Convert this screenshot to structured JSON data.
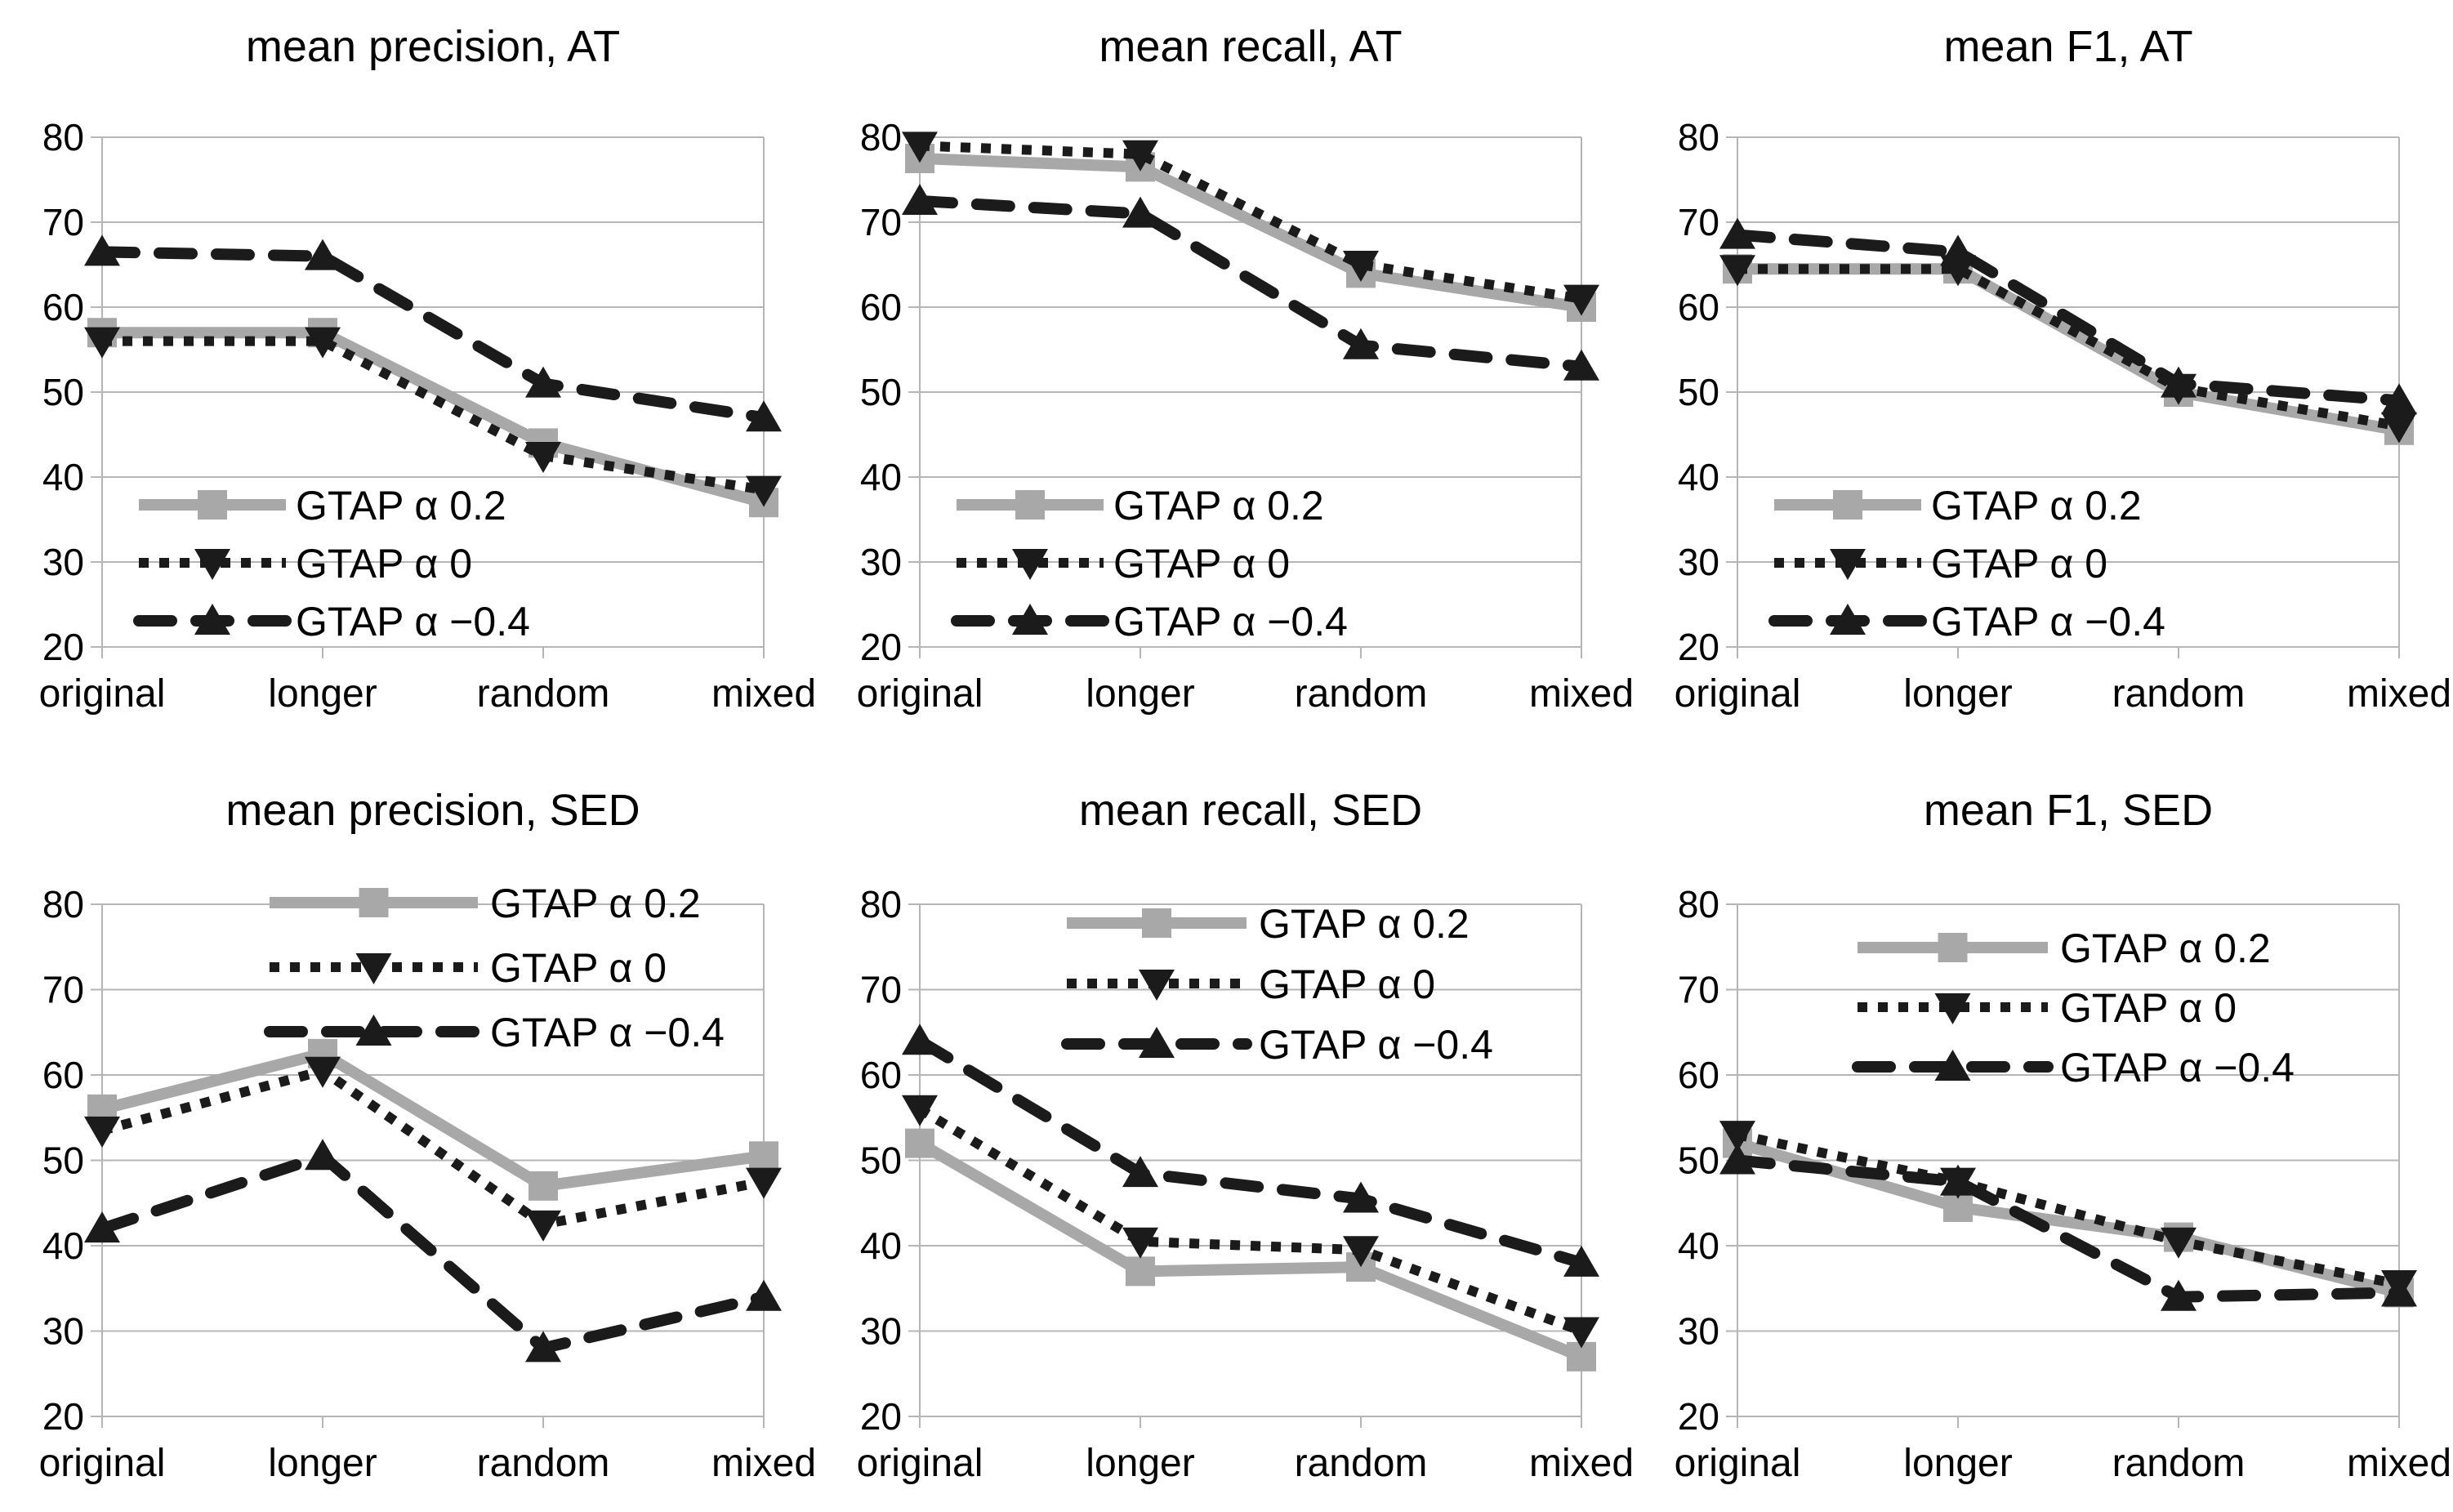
{
  "page": {
    "background": "#ffffff",
    "description_text": "grid of six line charts"
  },
  "colors": {
    "series_gray": "#a8a8a8",
    "series_black": "#1b1b1b",
    "grid_line": "#b5b5b5",
    "text": "#000000"
  },
  "categories": [
    "original",
    "longer",
    "random",
    "mixed"
  ],
  "y_axis": {
    "min": 20,
    "max": 80,
    "step": 10,
    "tick_labels": [
      "20",
      "30",
      "40",
      "50",
      "60",
      "70",
      "80"
    ]
  },
  "series_meta": [
    {
      "name": "GTAP α 0.2",
      "marker": "square",
      "line": "solid",
      "color": "#a8a8a8"
    },
    {
      "name": "GTAP α 0",
      "marker": "triangle-down",
      "line": "dotted",
      "color": "#1b1b1b"
    },
    {
      "name": "GTAP α −0.4",
      "marker": "triangle-up",
      "line": "dashed",
      "color": "#1b1b1b"
    }
  ],
  "chart_data": [
    {
      "type": "line",
      "title": "mean precision, AT",
      "categories": [
        "original",
        "longer",
        "random",
        "mixed"
      ],
      "series": [
        {
          "name": "GTAP α 0.2",
          "values": [
            57,
            57,
            44,
            37
          ]
        },
        {
          "name": "GTAP α 0",
          "values": [
            56,
            56,
            42.5,
            38.5
          ]
        },
        {
          "name": "GTAP α −0.4",
          "values": [
            66.5,
            66,
            51,
            47
          ]
        }
      ],
      "xlabel": "",
      "ylabel": "",
      "ylim": [
        20,
        80
      ],
      "grid": true,
      "legend_position": "lower-left"
    },
    {
      "type": "line",
      "title": "mean recall, AT",
      "categories": [
        "original",
        "longer",
        "random",
        "mixed"
      ],
      "series": [
        {
          "name": "GTAP α 0.2",
          "values": [
            77.5,
            76.5,
            64,
            60
          ]
        },
        {
          "name": "GTAP α 0",
          "values": [
            79,
            78,
            65,
            61
          ]
        },
        {
          "name": "GTAP α −0.4",
          "values": [
            72.5,
            71,
            55.5,
            53
          ]
        }
      ],
      "xlabel": "",
      "ylabel": "",
      "ylim": [
        20,
        80
      ],
      "grid": true,
      "legend_position": "lower-left"
    },
    {
      "type": "line",
      "title": "mean F1, AT",
      "categories": [
        "original",
        "longer",
        "random",
        "mixed"
      ],
      "series": [
        {
          "name": "GTAP α 0.2",
          "values": [
            64.5,
            64.5,
            50,
            45.5
          ]
        },
        {
          "name": "GTAP α 0",
          "values": [
            64.5,
            64.5,
            50.5,
            46
          ]
        },
        {
          "name": "GTAP α −0.4",
          "values": [
            68.5,
            66.5,
            51,
            49
          ]
        }
      ],
      "xlabel": "",
      "ylabel": "",
      "ylim": [
        20,
        80
      ],
      "grid": true,
      "legend_position": "lower-left"
    },
    {
      "type": "line",
      "title": "mean precision, SED",
      "categories": [
        "original",
        "longer",
        "random",
        "mixed"
      ],
      "series": [
        {
          "name": "GTAP α 0.2",
          "values": [
            56,
            62.5,
            47,
            50.5
          ]
        },
        {
          "name": "GTAP α 0",
          "values": [
            53.5,
            60.5,
            42.5,
            47.5
          ]
        },
        {
          "name": "GTAP α −0.4",
          "values": [
            42,
            50.5,
            28,
            34
          ]
        }
      ],
      "xlabel": "",
      "ylabel": "",
      "ylim": [
        20,
        80
      ],
      "grid": true,
      "legend_position": "upper-center"
    },
    {
      "type": "line",
      "title": "mean recall, SED",
      "categories": [
        "original",
        "longer",
        "random",
        "mixed"
      ],
      "series": [
        {
          "name": "GTAP α 0.2",
          "values": [
            52,
            37,
            37.5,
            27
          ]
        },
        {
          "name": "GTAP α 0",
          "values": [
            56,
            40.5,
            39.5,
            30
          ]
        },
        {
          "name": "GTAP α −0.4",
          "values": [
            64,
            48.5,
            45.5,
            38
          ]
        }
      ],
      "xlabel": "",
      "ylabel": "",
      "ylim": [
        20,
        80
      ],
      "grid": true,
      "legend_position": "upper-center"
    },
    {
      "type": "line",
      "title": "mean F1, SED",
      "categories": [
        "original",
        "longer",
        "random",
        "mixed"
      ],
      "series": [
        {
          "name": "GTAP α 0.2",
          "values": [
            52,
            44.5,
            41,
            34.5
          ]
        },
        {
          "name": "GTAP α 0",
          "values": [
            53,
            47.5,
            40.5,
            35.5
          ]
        },
        {
          "name": "GTAP α −0.4",
          "values": [
            50,
            47.5,
            34,
            34.5
          ]
        }
      ],
      "xlabel": "",
      "ylabel": "",
      "ylim": [
        20,
        80
      ],
      "grid": true,
      "legend_position": "upper-center"
    }
  ]
}
